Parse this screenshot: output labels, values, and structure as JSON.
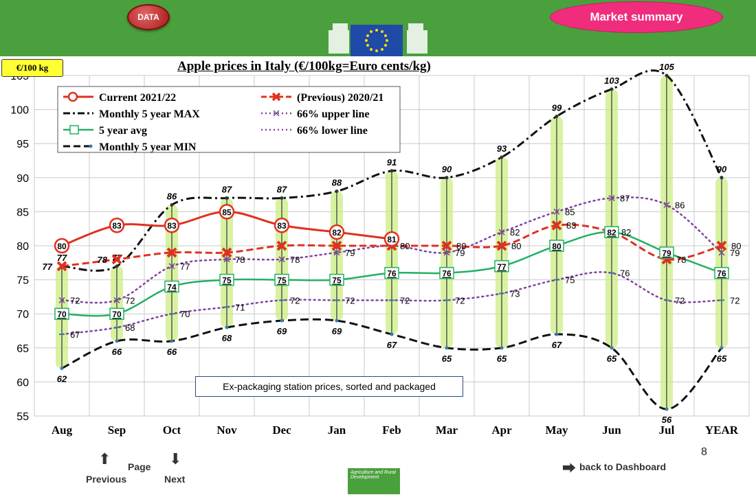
{
  "header": {
    "data_button": "DATA",
    "market_summary": "Market summary"
  },
  "colors": {
    "topbar_green": "#4aa03c",
    "current": "#e03020",
    "previous": "#e03020",
    "max_line": "#111111",
    "min_line": "#111111",
    "avg_line": "#22b060",
    "band_lines": "#8040a0",
    "highlight": "#c8ec7a"
  },
  "note": "Ex-packaging station prices, sorted and packaged",
  "unit_badge": "€/100 kg",
  "footer": {
    "page_label": "Page",
    "previous_label": "Previous",
    "next_label": "Next",
    "dashboard_label": "back to Dashboard",
    "page_number": "8",
    "agri_text": "Agriculture and Rural Development"
  },
  "chart_data": {
    "type": "line",
    "title": "Apple prices in Italy (€/100kg=Euro cents/kg)",
    "categories": [
      "Aug",
      "Sep",
      "Oct",
      "Nov",
      "Dec",
      "Jan",
      "Feb",
      "Mar",
      "Apr",
      "May",
      "Jun",
      "Jul",
      "YEAR"
    ],
    "ylim": [
      55,
      105
    ],
    "yticks": [
      55,
      60,
      65,
      70,
      75,
      80,
      85,
      90,
      95,
      100,
      105
    ],
    "grid": true,
    "legend_position": "top-left",
    "series": [
      {
        "name": "Current 2021/22",
        "key": "current",
        "values": [
          80,
          83,
          83,
          85,
          83,
          82,
          81,
          null,
          null,
          null,
          null,
          null,
          null
        ]
      },
      {
        "name": "(Previous) 2020/21",
        "key": "previous",
        "values": [
          77,
          78,
          79,
          79,
          80,
          80,
          80,
          80,
          80,
          83,
          82,
          78,
          80
        ]
      },
      {
        "name": "Monthly 5 year MAX",
        "key": "max",
        "values": [
          77,
          77,
          86,
          87,
          87,
          88,
          91,
          90,
          93,
          99,
          103,
          105,
          90
        ]
      },
      {
        "name": "66% upper line",
        "key": "upper",
        "values": [
          72,
          72,
          77,
          78,
          78,
          79,
          80,
          79,
          82,
          85,
          87,
          86,
          79
        ]
      },
      {
        "name": "5 year avg",
        "key": "avg",
        "values": [
          70,
          70,
          74,
          75,
          75,
          75,
          76,
          76,
          77,
          80,
          82,
          79,
          76
        ]
      },
      {
        "name": "66% lower line",
        "key": "lower",
        "values": [
          67,
          68,
          70,
          71,
          72,
          72,
          72,
          72,
          73,
          75,
          76,
          72,
          72
        ]
      },
      {
        "name": "Monthly 5 year MIN",
        "key": "min",
        "values": [
          62,
          66,
          66,
          68,
          69,
          69,
          67,
          65,
          65,
          67,
          65,
          56,
          65
        ]
      }
    ]
  }
}
